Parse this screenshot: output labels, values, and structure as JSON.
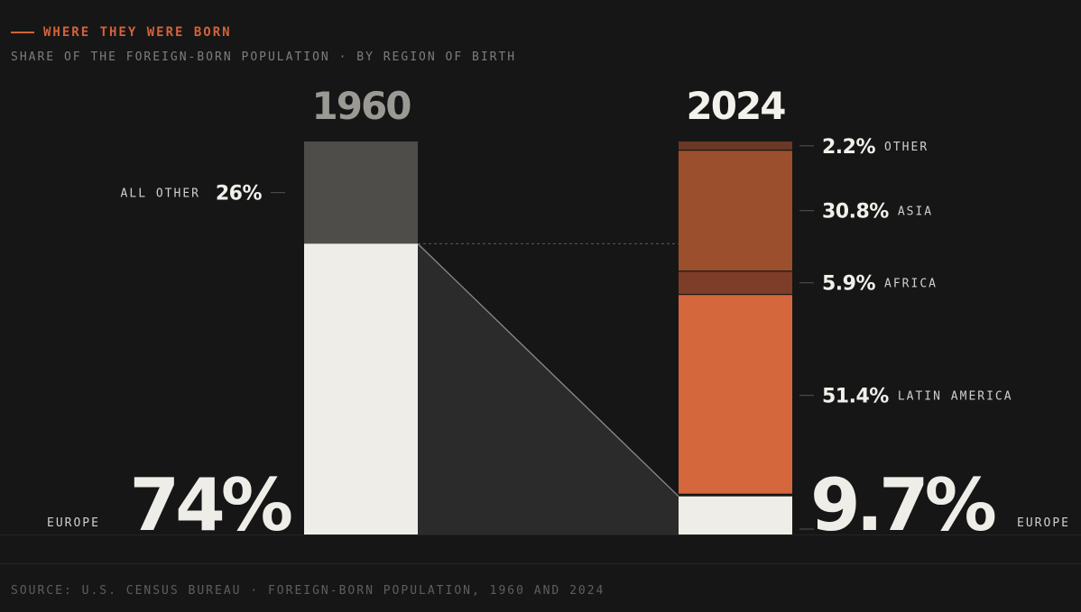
{
  "header": {
    "eyebrow": "WHERE THEY WERE BORN",
    "subtitle": "SHARE OF THE FOREIGN-BORN POPULATION · BY REGION OF BIRTH"
  },
  "footer": {
    "source": "SOURCE: U.S. CENSUS BUREAU · FOREIGN-BORN POPULATION, 1960 AND 2024"
  },
  "colors": {
    "background": "#161616",
    "europe": "#efede8",
    "all_other_1960": "#4e4d4a",
    "latin_america": "#d4673b",
    "africa": "#7d3d28",
    "asia": "#9c4f2c",
    "other": "#6a3826",
    "connector": "#2b2b2b",
    "accent": "#d4623a"
  },
  "chart_data": {
    "type": "bar",
    "stacked": true,
    "unit": "%",
    "ylim": [
      0,
      100
    ],
    "categories": [
      "1960",
      "2024"
    ],
    "series": [
      {
        "name": "EUROPE",
        "values": [
          74,
          9.7
        ],
        "labels": [
          "74%",
          "9.7%"
        ]
      },
      {
        "name": "LATIN AMERICA",
        "values": [
          null,
          51.4
        ],
        "labels": [
          "",
          "51.4%"
        ]
      },
      {
        "name": "AFRICA",
        "values": [
          null,
          5.9
        ],
        "labels": [
          "",
          "5.9%"
        ]
      },
      {
        "name": "ASIA",
        "values": [
          null,
          30.8
        ],
        "labels": [
          "",
          "30.8%"
        ]
      },
      {
        "name": "OTHER",
        "values": [
          null,
          2.2
        ],
        "labels": [
          "",
          "2.2%"
        ]
      },
      {
        "name": "ALL OTHER",
        "values": [
          26,
          null
        ],
        "labels": [
          "26%",
          ""
        ]
      }
    ]
  }
}
